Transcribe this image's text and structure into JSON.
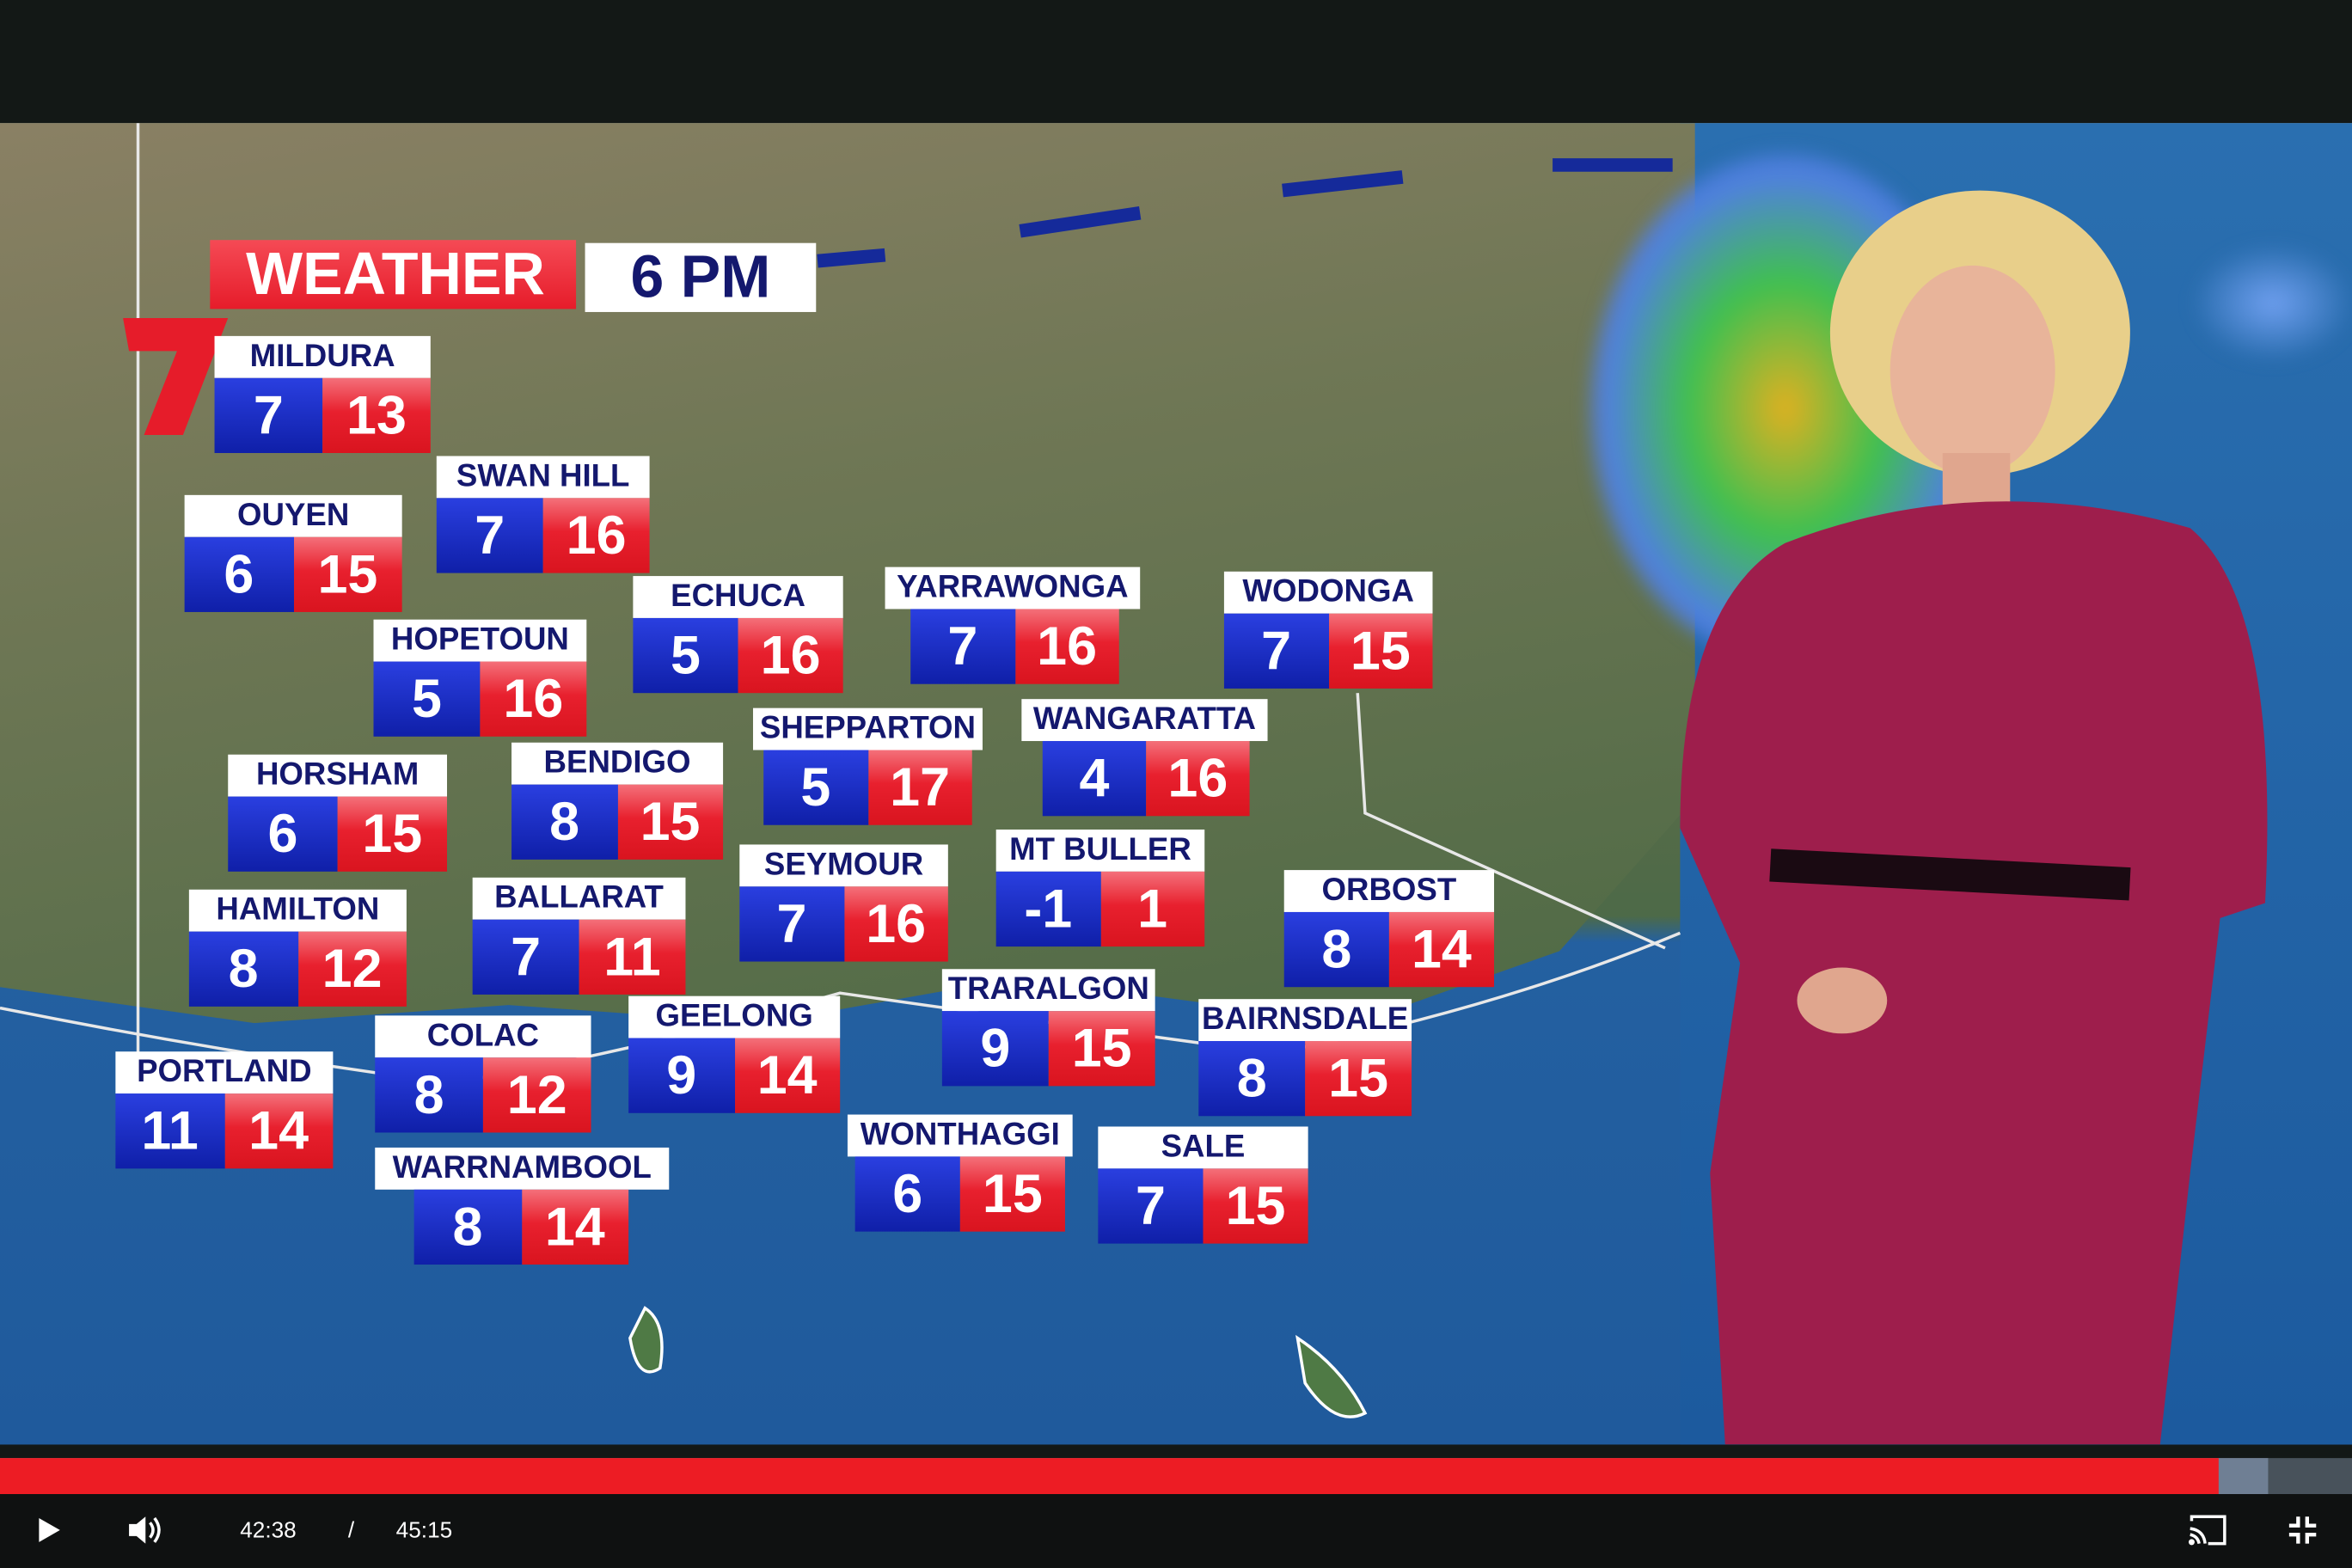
{
  "banner": {
    "title": "WEATHER",
    "time": "6 PM"
  },
  "forecasts": [
    {
      "town": "MILDURA",
      "min": "7",
      "max": "13"
    },
    {
      "town": "SWAN HILL",
      "min": "7",
      "max": "16"
    },
    {
      "town": "OUYEN",
      "min": "6",
      "max": "15"
    },
    {
      "town": "HOPETOUN",
      "min": "5",
      "max": "16"
    },
    {
      "town": "ECHUCA",
      "min": "5",
      "max": "16"
    },
    {
      "town": "YARRAWONGA",
      "min": "7",
      "max": "16"
    },
    {
      "town": "WODONGA",
      "min": "7",
      "max": "15"
    },
    {
      "town": "SHEPPARTON",
      "min": "5",
      "max": "17"
    },
    {
      "town": "WANGARATTA",
      "min": "4",
      "max": "16"
    },
    {
      "town": "HORSHAM",
      "min": "6",
      "max": "15"
    },
    {
      "town": "BENDIGO",
      "min": "8",
      "max": "15"
    },
    {
      "town": "SEYMOUR",
      "min": "7",
      "max": "16"
    },
    {
      "town": "MT BULLER",
      "min": "-1",
      "max": "1"
    },
    {
      "town": "ORBOST",
      "min": "8",
      "max": "14"
    },
    {
      "town": "HAMILTON",
      "min": "8",
      "max": "12"
    },
    {
      "town": "BALLARAT",
      "min": "7",
      "max": "11"
    },
    {
      "town": "TRARALGON",
      "min": "9",
      "max": "15"
    },
    {
      "town": "GEELONG",
      "min": "9",
      "max": "14"
    },
    {
      "town": "BAIRNSDALE",
      "min": "8",
      "max": "15"
    },
    {
      "town": "COLAC",
      "min": "8",
      "max": "12"
    },
    {
      "town": "PORTLAND",
      "min": "11",
      "max": "14"
    },
    {
      "town": "WONTHAGGI",
      "min": "6",
      "max": "15"
    },
    {
      "town": "SALE",
      "min": "7",
      "max": "15"
    },
    {
      "town": "WARRNAMBOOL",
      "min": "8",
      "max": "14"
    }
  ],
  "player": {
    "current_time": "42:38",
    "separator": "/",
    "duration": "45:15",
    "played_fraction": 0.943,
    "buffered_fraction": 0.964,
    "icons": [
      "play-icon",
      "volume-icon",
      "cast-icon",
      "exit-fullscreen-icon"
    ],
    "colors": {
      "played": "#ed1c24",
      "buffered": "#6f7f94",
      "track": "#48525b"
    }
  },
  "colors": {
    "min_temp": "#1a2fc8",
    "max_temp": "#e8202e",
    "label_text": "#14186e",
    "brand_red": "#e61c2a"
  }
}
